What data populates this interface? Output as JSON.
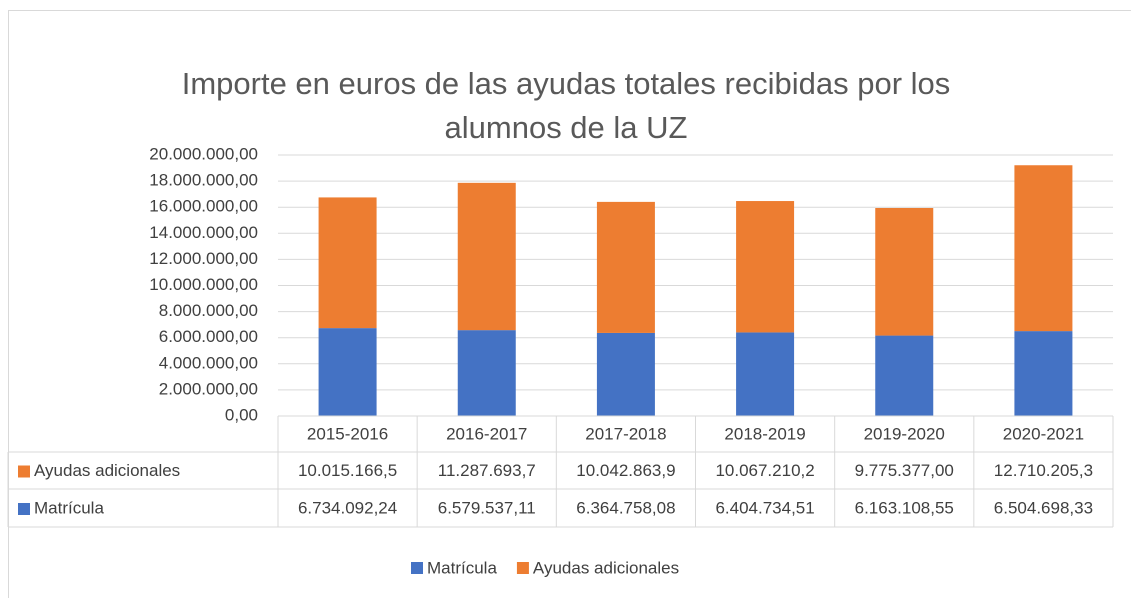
{
  "chart_data": {
    "type": "stacked_bar",
    "title": [
      "Importe en euros de las ayudas totales recibidas por los",
      "alumnos de la UZ"
    ],
    "categories": [
      "2015-2016",
      "2016-2017",
      "2017-2018",
      "2018-2019",
      "2019-2020",
      "2020-2021"
    ],
    "series": [
      {
        "name": "Matrícula",
        "color": "#4472c4",
        "values": [
          6734092.24,
          6579537.11,
          6364758.08,
          6404734.51,
          6163108.55,
          6504698.33
        ],
        "value_labels": [
          "6.734.092,24",
          "6.579.537,11",
          "6.364.758,08",
          "6.404.734,51",
          "6.163.108,55",
          "6.504.698,33"
        ]
      },
      {
        "name": "Ayudas adicionales",
        "color": "#ed7d31",
        "values": [
          10015166.5,
          11287693.7,
          10042863.9,
          10067210.2,
          9775377.0,
          12710205.3
        ],
        "value_labels": [
          "10.015.166,5",
          "11.287.693,7",
          "10.042.863,9",
          "10.067.210,2",
          "9.775.377,00",
          "12.710.205,3"
        ]
      }
    ],
    "ylim": [
      0,
      20000000
    ],
    "yticks": [
      {
        "value": 0,
        "label": "0,00"
      },
      {
        "value": 2000000,
        "label": "2.000.000,00"
      },
      {
        "value": 4000000,
        "label": "4.000.000,00"
      },
      {
        "value": 6000000,
        "label": "6.000.000,00"
      },
      {
        "value": 8000000,
        "label": "8.000.000,00"
      },
      {
        "value": 10000000,
        "label": "10.000.000,00"
      },
      {
        "value": 12000000,
        "label": "12.000.000,00"
      },
      {
        "value": 14000000,
        "label": "14.000.000,00"
      },
      {
        "value": 16000000,
        "label": "16.000.000,00"
      },
      {
        "value": 18000000,
        "label": "18.000.000,00"
      },
      {
        "value": 20000000,
        "label": "20.000.000,00"
      }
    ],
    "grid": true,
    "legend": "bottom"
  }
}
